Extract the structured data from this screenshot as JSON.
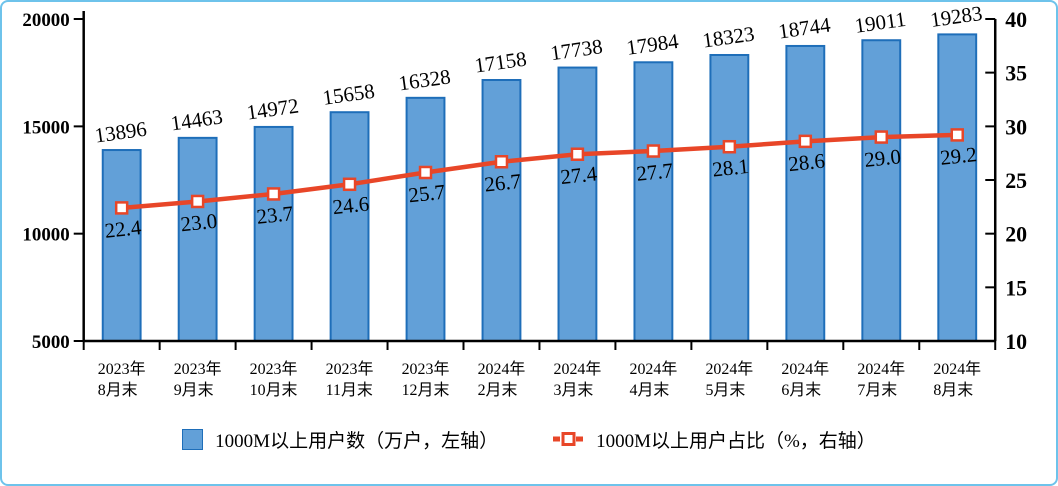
{
  "legend": {
    "bar_label": "1000M以上用户数（万户，左轴）",
    "line_label": "1000M以上用户占比（%，右轴）"
  },
  "colors": {
    "bar_fill": "#62A0D8",
    "bar_border": "#1E6EB9",
    "line": "#E84628",
    "marker_fill": "#FFFFFF",
    "axis": "#000000",
    "text": "#000000",
    "frame_border": "#6EC3EB"
  },
  "chart_data": {
    "type": "combo",
    "title": "",
    "grid": false,
    "legend_position": "bottom",
    "categories": [
      "2023年8月末",
      "2023年9月末",
      "2023年10月末",
      "2023年11月末",
      "2023年12月末",
      "2024年2月末",
      "2024年3月末",
      "2024年4月末",
      "2024年5月末",
      "2024年6月末",
      "2024年7月末",
      "2024年8月末"
    ],
    "categories_lines": [
      [
        "2023年",
        "8月末"
      ],
      [
        "2023年",
        "9月末"
      ],
      [
        "2023年",
        "10月末"
      ],
      [
        "2023年",
        "11月末"
      ],
      [
        "2023年",
        "12月末"
      ],
      [
        "2024年",
        "2月末"
      ],
      [
        "2024年",
        "3月末"
      ],
      [
        "2024年",
        "4月末"
      ],
      [
        "2024年",
        "5月末"
      ],
      [
        "2024年",
        "6月末"
      ],
      [
        "2024年",
        "7月末"
      ],
      [
        "2024年",
        "8月末"
      ]
    ],
    "series": [
      {
        "name": "1000M以上用户数（万户，左轴）",
        "type": "bar",
        "axis": "left",
        "values": [
          13896,
          14463,
          14972,
          15658,
          16328,
          17158,
          17738,
          17984,
          18323,
          18744,
          19011,
          19283
        ]
      },
      {
        "name": "1000M以上用户占比（%，右轴）",
        "type": "line",
        "axis": "right",
        "values": [
          22.4,
          23.0,
          23.7,
          24.6,
          25.7,
          26.7,
          27.4,
          27.7,
          28.1,
          28.6,
          29.0,
          29.2
        ],
        "label_decimals": 1
      }
    ],
    "left_axis": {
      "min": 5000,
      "max": 20000,
      "ticks": [
        5000,
        10000,
        15000,
        20000
      ]
    },
    "right_axis": {
      "min": 10,
      "max": 40,
      "ticks": [
        10,
        15,
        20,
        25,
        30,
        35,
        40
      ]
    }
  }
}
